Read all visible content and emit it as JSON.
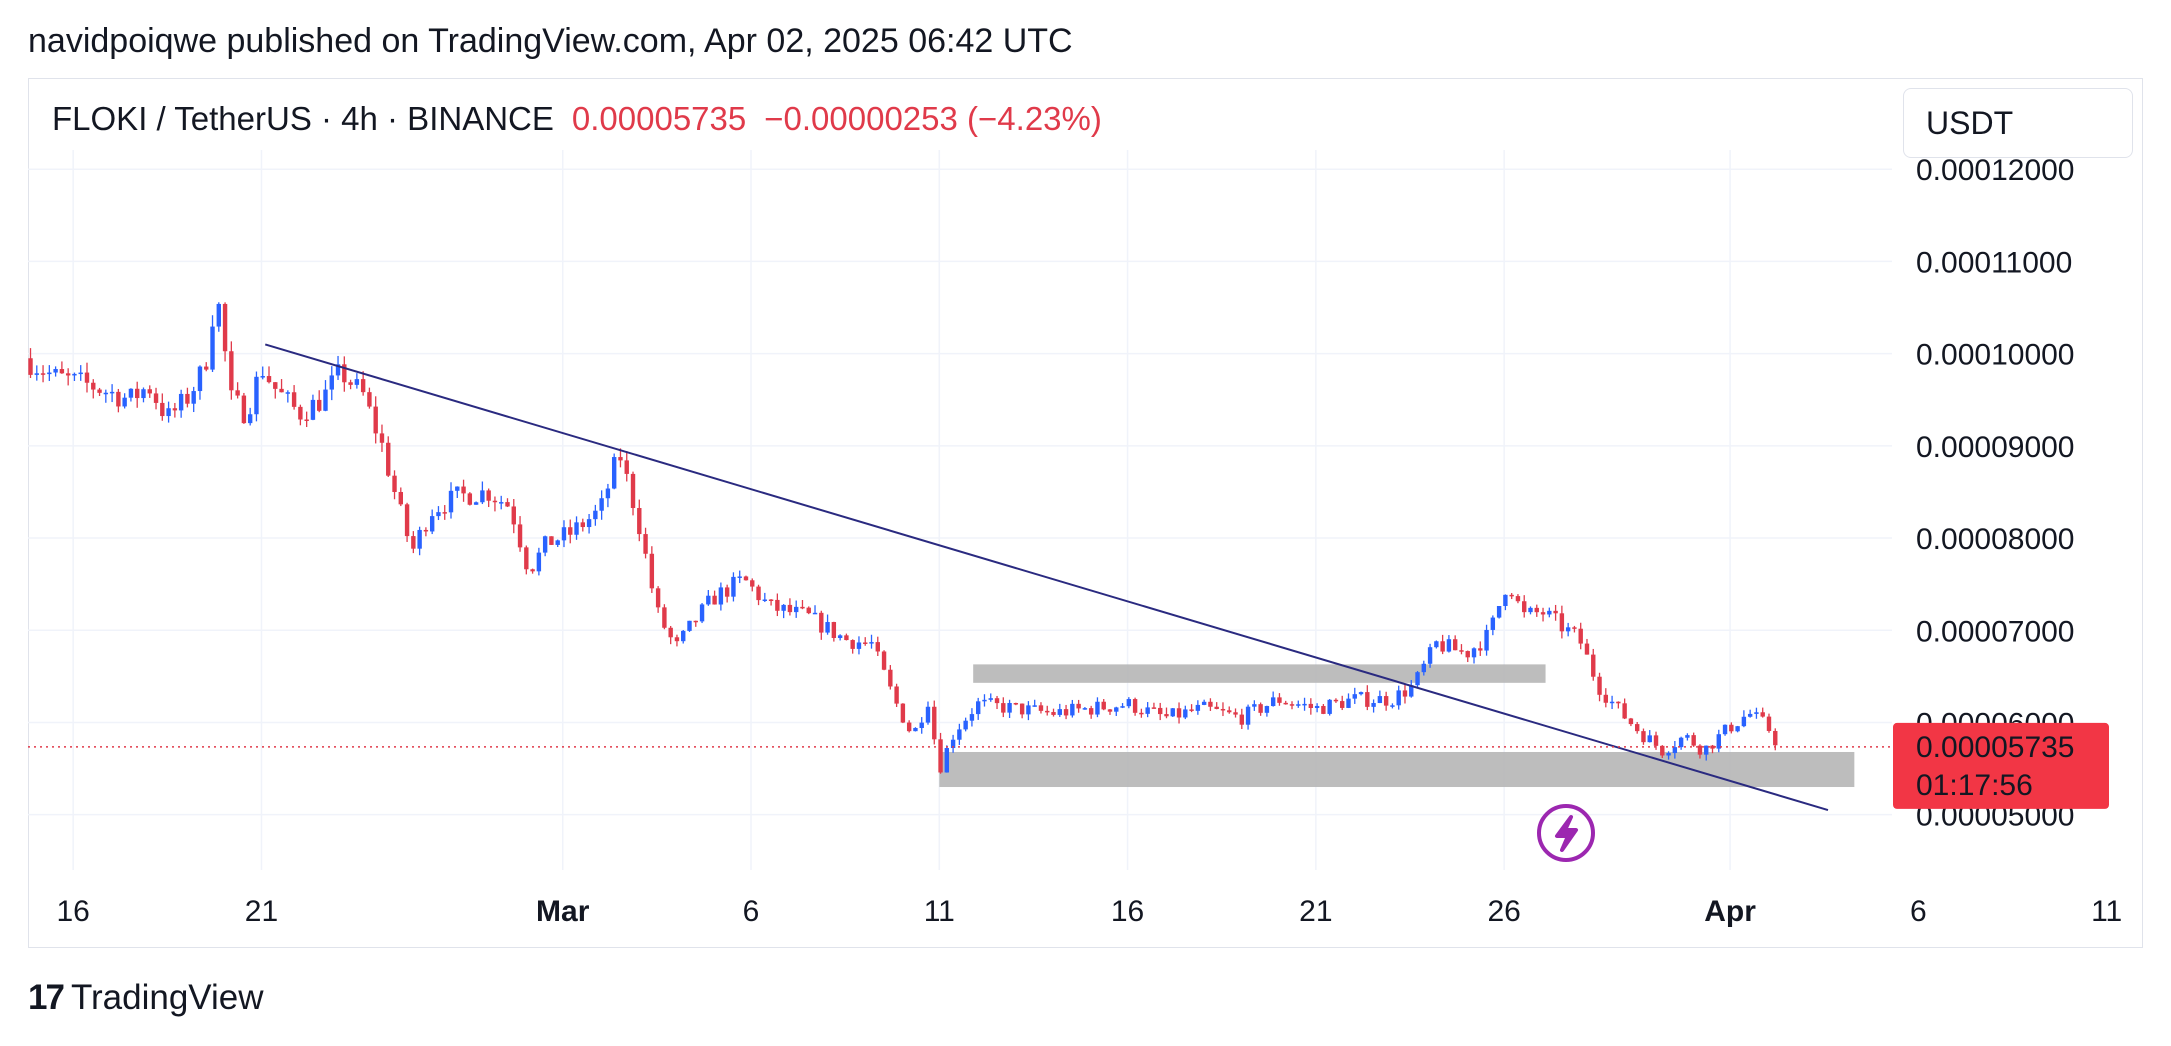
{
  "caption": "navidpoiqwe published on TradingView.com, Apr 02, 2025 06:42 UTC",
  "header": {
    "symbol": "FLOKI / TetherUS · 4h · BINANCE",
    "price": "0.00005735",
    "change": "−0.00000253 (−4.23%)"
  },
  "currency_selector": "USDT",
  "logo": {
    "mark": "17",
    "text": "TradingView"
  },
  "colors": {
    "up": "#2962ff",
    "down": "#e03a4a",
    "trendline": "#2a2a80",
    "zone": "#b2b2b2",
    "badge": "#f23645",
    "icon": "#9c27b0"
  },
  "chart_data": {
    "type": "candlestick",
    "title": "FLOKI / TetherUS · 4h · BINANCE",
    "ylim": [
      4.4e-05,
      0.000121
    ],
    "y_ticks": [
      {
        "value": 0.00012,
        "label": "0.00012000"
      },
      {
        "value": 0.00011,
        "label": "0.00011000"
      },
      {
        "value": 0.0001,
        "label": "0.00010000"
      },
      {
        "value": 9e-05,
        "label": "0.00009000"
      },
      {
        "value": 8e-05,
        "label": "0.00008000"
      },
      {
        "value": 7e-05,
        "label": "0.00007000"
      },
      {
        "value": 6e-05,
        "label": "0.00006000"
      },
      {
        "value": 5e-05,
        "label": "0.00005000"
      }
    ],
    "xlim": [
      -1.2,
      48.3
    ],
    "x_ticks": [
      {
        "day": 0,
        "label": "16",
        "bold": false
      },
      {
        "day": 5,
        "label": "21",
        "bold": false
      },
      {
        "day": 13,
        "label": "Mar",
        "bold": true
      },
      {
        "day": 18,
        "label": "6",
        "bold": false
      },
      {
        "day": 23,
        "label": "11",
        "bold": false
      },
      {
        "day": 28,
        "label": "16",
        "bold": false
      },
      {
        "day": 33,
        "label": "21",
        "bold": false
      },
      {
        "day": 38,
        "label": "26",
        "bold": false
      },
      {
        "day": 44,
        "label": "Apr",
        "bold": true
      },
      {
        "day": 49,
        "label": "6",
        "bold": false
      },
      {
        "day": 54,
        "label": "11",
        "bold": false
      }
    ],
    "close_path": [
      [
        -1.3,
        9.95e-05
      ],
      [
        -0.5,
        9.75e-05
      ],
      [
        0.5,
        9.65e-05
      ],
      [
        1.5,
        9.5e-05
      ],
      [
        2.0,
        9.65e-05
      ],
      [
        2.5,
        9.3e-05
      ],
      [
        3.0,
        9.5e-05
      ],
      [
        3.5,
        9.85e-05
      ],
      [
        3.8,
        0.000107
      ],
      [
        4.2,
        9.5e-05
      ],
      [
        4.6,
        9.35e-05
      ],
      [
        5.0,
        9.85e-05
      ],
      [
        5.4,
        9.6e-05
      ],
      [
        6.0,
        9.35e-05
      ],
      [
        6.6,
        9.5e-05
      ],
      [
        7.1,
        9.8e-05
      ],
      [
        7.7,
        9.55e-05
      ],
      [
        8.2,
        9e-05
      ],
      [
        8.6,
        8.4e-05
      ],
      [
        9.0,
        7.85e-05
      ],
      [
        9.5,
        8.3e-05
      ],
      [
        10.2,
        8.45e-05
      ],
      [
        11.0,
        8.5e-05
      ],
      [
        11.6,
        8.35e-05
      ],
      [
        12.1,
        7.65e-05
      ],
      [
        12.6,
        7.95e-05
      ],
      [
        13.2,
        8.05e-05
      ],
      [
        14.0,
        8.3e-05
      ],
      [
        14.5,
        8.93e-05
      ],
      [
        15.0,
        8.2e-05
      ],
      [
        15.5,
        7.2e-05
      ],
      [
        16.0,
        6.8e-05
      ],
      [
        16.5,
        7.1e-05
      ],
      [
        17.0,
        7.35e-05
      ],
      [
        17.8,
        7.55e-05
      ],
      [
        18.5,
        7.25e-05
      ],
      [
        19.5,
        7.15e-05
      ],
      [
        20.5,
        6.9e-05
      ],
      [
        21.2,
        6.85e-05
      ],
      [
        21.8,
        6.25e-05
      ],
      [
        22.3,
        5.85e-05
      ],
      [
        22.7,
        6.25e-05
      ],
      [
        23.0,
        5.5e-05
      ],
      [
        23.4,
        5.9e-05
      ],
      [
        24.0,
        6.2e-05
      ],
      [
        25.0,
        6.15e-05
      ],
      [
        26.0,
        6.1e-05
      ],
      [
        27.0,
        6.15e-05
      ],
      [
        28.0,
        6.2e-05
      ],
      [
        29.0,
        6.05e-05
      ],
      [
        30.0,
        6.15e-05
      ],
      [
        31.0,
        6.05e-05
      ],
      [
        32.0,
        6.25e-05
      ],
      [
        33.0,
        6.15e-05
      ],
      [
        34.0,
        6.25e-05
      ],
      [
        35.0,
        6.25e-05
      ],
      [
        35.6,
        6.4e-05
      ],
      [
        36.2,
        6.85e-05
      ],
      [
        37.0,
        6.75e-05
      ],
      [
        37.6,
        6.95e-05
      ],
      [
        38.1,
        7.55e-05
      ],
      [
        38.5,
        7.15e-05
      ],
      [
        39.0,
        7.2e-05
      ],
      [
        40.0,
        6.9e-05
      ],
      [
        40.5,
        6.4e-05
      ],
      [
        41.0,
        6.15e-05
      ],
      [
        41.6,
        5.9e-05
      ],
      [
        42.2,
        5.7e-05
      ],
      [
        42.8,
        5.85e-05
      ],
      [
        43.3,
        5.7e-05
      ],
      [
        44.0,
        5.95e-05
      ],
      [
        44.5,
        6.1e-05
      ],
      [
        45.0,
        5.95e-05
      ],
      [
        45.3,
        5.74e-05
      ]
    ],
    "trendline": {
      "from": [
        5.1,
        0.000101
      ],
      "to": [
        46.6,
        5.05e-05
      ]
    },
    "zones": [
      {
        "name": "upper-range-zone",
        "x_from": 23.9,
        "x_to": 39.1,
        "y_from": 6.43e-05,
        "y_to": 6.63e-05
      },
      {
        "name": "support-zone",
        "x_from": 23.0,
        "x_to": 47.3,
        "y_from": 5.3e-05,
        "y_to": 5.68e-05
      }
    ],
    "last_price": {
      "value": 5.735e-05,
      "label": "0.00005735",
      "countdown": "01:17:56"
    }
  }
}
